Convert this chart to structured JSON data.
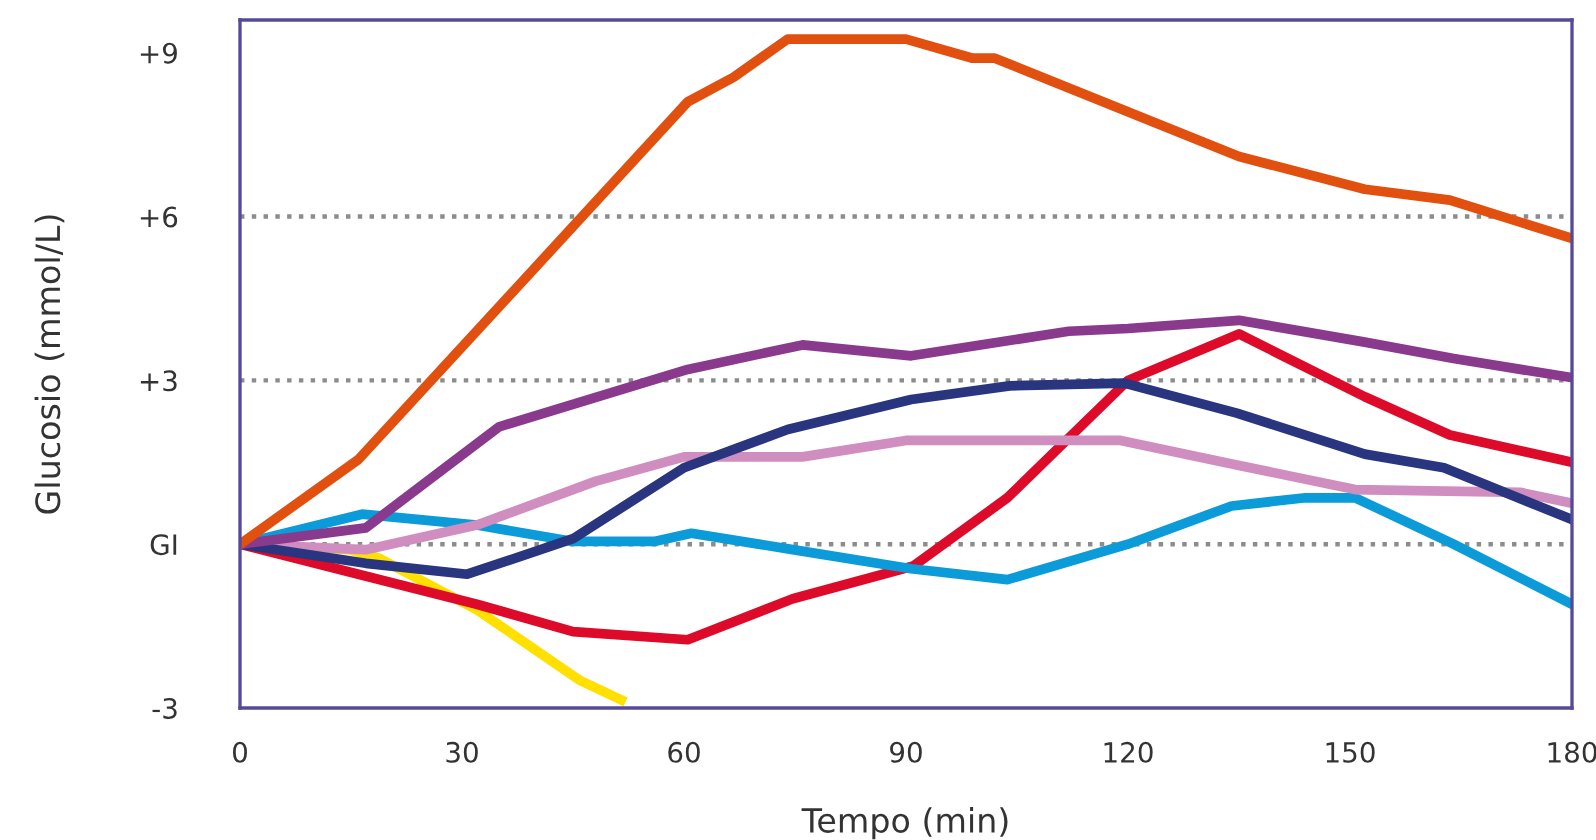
{
  "chart_data": {
    "type": "line",
    "xlabel": "Tempo (min)",
    "ylabel": "Glucosio (mmol/L)",
    "xlim": [
      0,
      180
    ],
    "xticks": [
      0,
      30,
      60,
      90,
      120,
      150,
      180
    ],
    "ylim": [
      -3,
      9.6
    ],
    "yticks": [
      {
        "value": -3,
        "label": "-3"
      },
      {
        "value": 0,
        "label": "GI"
      },
      {
        "value": 3,
        "label": "+3"
      },
      {
        "value": 6,
        "label": "+6"
      },
      {
        "value": 9,
        "label": "+9"
      }
    ],
    "ref_lines": [
      {
        "axis": "y",
        "value": 0,
        "color": "#8c8c8c",
        "line_style": "dotted"
      },
      {
        "axis": "y",
        "value": 3,
        "color": "#8c8c8c",
        "line_style": "dotted"
      },
      {
        "axis": "y",
        "value": 6,
        "color": "#8c8c8c",
        "line_style": "dotted"
      }
    ],
    "grid": false,
    "marker": "none",
    "line_style": "solid",
    "series": [
      {
        "color": "#ffe000",
        "x": [
          0,
          14.7,
          18.7,
          32,
          46,
          51.5
        ],
        "values": [
          0,
          -0.1,
          -0.25,
          -1.2,
          -2.5,
          -2.85
        ]
      },
      {
        "color": "#dd0a2a",
        "x": [
          0,
          16,
          32,
          45,
          60.5,
          74.7,
          91,
          103.7,
          120,
          135,
          152,
          163.5,
          180
        ],
        "values": [
          0,
          -0.55,
          -1.1,
          -1.6,
          -1.75,
          -1.0,
          -0.4,
          0.85,
          3.0,
          3.85,
          2.7,
          2.0,
          1.5
        ]
      },
      {
        "color": "#0a9bd8",
        "x": [
          0,
          16.5,
          32,
          45,
          56,
          61,
          74.7,
          90.7,
          103.7,
          120,
          134,
          144,
          150.7,
          164,
          180
        ],
        "values": [
          0,
          0.55,
          0.35,
          0.05,
          0.05,
          0.2,
          -0.1,
          -0.45,
          -0.65,
          0,
          0.7,
          0.85,
          0.85,
          0,
          -1.1
        ]
      },
      {
        "color": "#d08ec0",
        "x": [
          0,
          17,
          32,
          48,
          60,
          76,
          90,
          119,
          134.7,
          150.7,
          173,
          180
        ],
        "values": [
          0,
          -0.1,
          0.35,
          1.15,
          1.6,
          1.6,
          1.9,
          1.9,
          1.45,
          1.0,
          0.95,
          0.75
        ]
      },
      {
        "color": "#2a3580",
        "x": [
          0,
          17,
          30.7,
          45,
          60,
          74,
          90.7,
          104,
          119.5,
          134.7,
          152,
          162.7,
          180
        ],
        "values": [
          0,
          -0.35,
          -0.55,
          0.1,
          1.4,
          2.1,
          2.65,
          2.9,
          2.95,
          2.4,
          1.65,
          1.4,
          0.45
        ]
      },
      {
        "color": "#8a3a8c",
        "x": [
          0,
          17,
          35,
          60.5,
          76,
          90.7,
          112,
          120,
          135,
          152,
          164,
          180
        ],
        "values": [
          0,
          0.3,
          2.15,
          3.2,
          3.65,
          3.45,
          3.9,
          3.95,
          4.1,
          3.7,
          3.4,
          3.05
        ]
      },
      {
        "color": "#e2500f",
        "x": [
          0,
          16,
          60.5,
          66.7,
          74,
          90,
          99,
          102,
          135,
          152,
          163.5,
          180
        ],
        "values": [
          0,
          1.55,
          8.1,
          8.55,
          9.25,
          9.25,
          8.9,
          8.9,
          7.1,
          6.5,
          6.3,
          5.6
        ]
      }
    ]
  }
}
